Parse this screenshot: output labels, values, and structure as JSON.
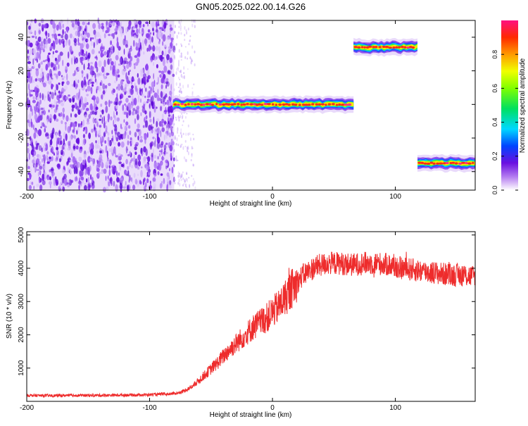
{
  "title": "GN05.2025.022.00.14.G26",
  "chart_data": [
    {
      "type": "heatmap",
      "xlabel": "Height of straight line (km)",
      "ylabel": "Frequency (Hz)",
      "xlim": [
        -200,
        165
      ],
      "ylim": [
        -51,
        50
      ],
      "xticks": [
        -200,
        -100,
        0,
        100
      ],
      "yticks": [
        -40,
        -20,
        0,
        20,
        40
      ],
      "noise_region": {
        "x": [
          -200,
          -80
        ],
        "note_color": "#7a16e0"
      },
      "tracks": [
        {
          "x": [
            -81,
            66
          ],
          "freq": 0
        },
        {
          "x": [
            66,
            118
          ],
          "freq": 34
        },
        {
          "x": [
            118,
            165
          ],
          "freq": -35
        }
      ],
      "colorbar": {
        "label": "Normalized spectral amplitude",
        "range": [
          0,
          1
        ],
        "ticks": [
          "0.0",
          "0.2",
          "0.4",
          "0.6",
          "0.8"
        ]
      }
    },
    {
      "type": "line",
      "xlabel": "Height of straight line (km)",
      "ylabel": "SNR (10 * v/v)",
      "xlim": [
        -200,
        165
      ],
      "ylim": [
        0,
        5100
      ],
      "xticks": [
        -200,
        -100,
        0,
        100
      ],
      "yticks": [
        1000,
        2000,
        3000,
        4000,
        5000
      ],
      "series": [
        {
          "color": "#ee2c2c",
          "x": [
            -200,
            -180,
            -160,
            -140,
            -120,
            -100,
            -85,
            -75,
            -65,
            -55,
            -45,
            -35,
            -25,
            -15,
            -5,
            5,
            15,
            25,
            35,
            45,
            55,
            65,
            75,
            85,
            95,
            105,
            115,
            125,
            135,
            145,
            155,
            165
          ],
          "y": [
            180,
            170,
            180,
            180,
            190,
            200,
            220,
            260,
            450,
            800,
            1150,
            1550,
            1900,
            2250,
            2500,
            2850,
            3350,
            3800,
            4050,
            4150,
            4150,
            4100,
            4150,
            4150,
            4100,
            4000,
            3950,
            3900,
            3850,
            3800,
            3800,
            3750
          ]
        }
      ]
    }
  ]
}
